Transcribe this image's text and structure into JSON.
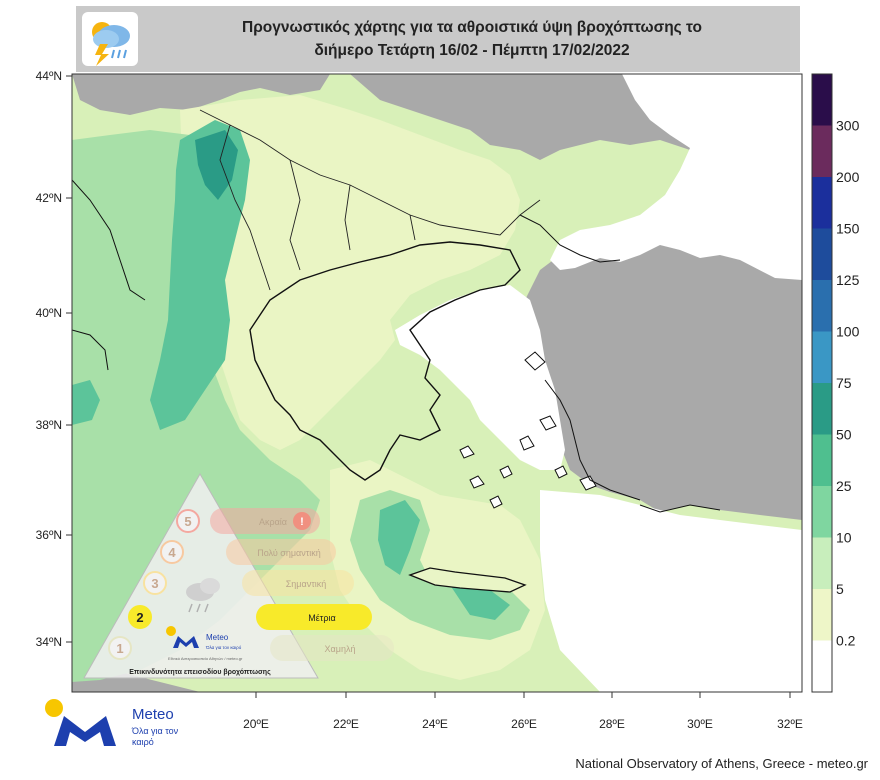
{
  "title": {
    "line1": "Προγνωστικός χάρτης για τα αθροιστικά ύψη βροχόπτωσης το",
    "line2": "διήμερο Τετάρτη 16/02 - Πέμπτη 17/02/2022"
  },
  "axes": {
    "lat_labels": [
      "44ºN",
      "42ºN",
      "40ºN",
      "38ºN",
      "36ºN",
      "34ºN"
    ],
    "lon_labels": [
      "20ºE",
      "22ºE",
      "24ºE",
      "26ºE",
      "28ºE",
      "30ºE",
      "32ºE"
    ]
  },
  "colorbar": {
    "labels": [
      "300",
      "200",
      "150",
      "125",
      "100",
      "75",
      "50",
      "25",
      "10",
      "5",
      "0.2"
    ],
    "colors": [
      "#2a0d4a",
      "#6b2b5d",
      "#1b2f9c",
      "#1e4c9c",
      "#2a6fae",
      "#3a97c5",
      "#2a9b86",
      "#4fbf8f",
      "#7fd6a0",
      "#c8eebc",
      "#eef6c8",
      "#ffffff"
    ]
  },
  "legend": {
    "levels": [
      {
        "number": "5",
        "label": "Ακραία",
        "color": "#f4a8a0"
      },
      {
        "number": "4",
        "label": "Πολύ σημαντική",
        "color": "#f7c9a0"
      },
      {
        "number": "3",
        "label": "Σημαντική",
        "color": "#f8e2a0"
      },
      {
        "number": "2",
        "label": "Μέτρια",
        "color": "#f8ea2a"
      },
      {
        "number": "1",
        "label": "Χαμηλή",
        "color": "#e6e6c4"
      }
    ],
    "footer": "Επικινδυνότητα επεισοδίου βροχόπτωσης",
    "logo_word": "Meteo",
    "logo_slogan": "Όλα για τον καιρό",
    "logo_small": "Εθνικό Αστεροσκοπείο Αθηνών / meteo.gr"
  },
  "brand": {
    "word": "Meteo",
    "slogan": "Όλα για τον καιρό"
  },
  "credit": "National Observatory of Athens, Greece - meteo.gr",
  "map_colors": {
    "sea": "#d8f0b8",
    "land_outside": "#a9a9a9",
    "dry": "#ffffff",
    "light": "#eaf5c4",
    "mid": "#a8e0a8",
    "heavy": "#5cc49a",
    "very_heavy": "#2a9b86"
  }
}
